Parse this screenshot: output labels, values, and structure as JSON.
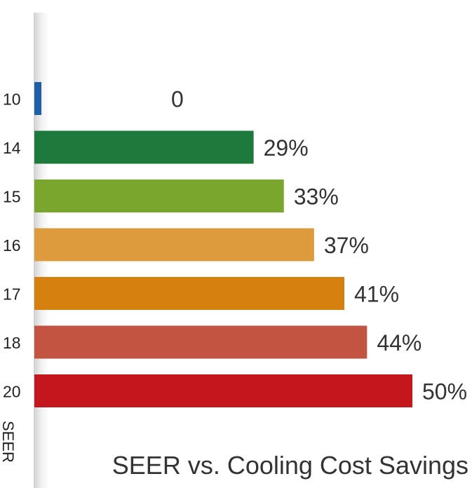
{
  "chart_data": {
    "type": "bar",
    "orientation": "horizontal",
    "title": "SEER vs. Cooling Cost Savings",
    "ylabel": "SEER",
    "xlabel": "",
    "categories": [
      "10",
      "14",
      "15",
      "16",
      "17",
      "18",
      "20"
    ],
    "values": [
      0,
      29,
      33,
      37,
      41,
      44,
      50
    ],
    "value_labels": [
      "0",
      "29%",
      "33%",
      "37%",
      "41%",
      "44%",
      "50%"
    ],
    "xlim": [
      0,
      50
    ],
    "grid": false,
    "legend": "none",
    "colors": [
      "#1f5fa8",
      "#1e7a3c",
      "#7aa62e",
      "#de9b3d",
      "#d6800f",
      "#c25441",
      "#c4161c"
    ]
  }
}
